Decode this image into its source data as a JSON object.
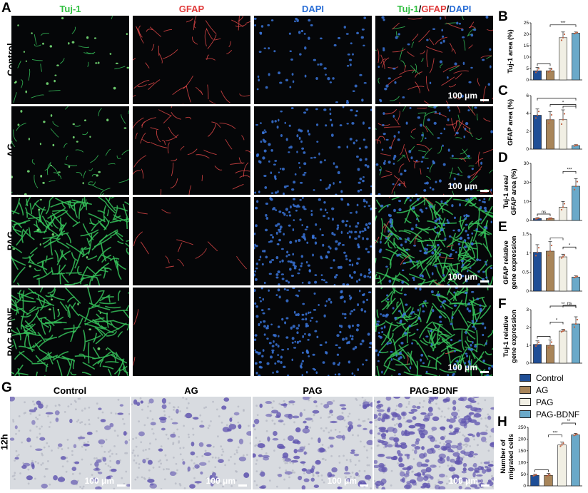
{
  "panel_letters": {
    "A": "A",
    "B": "B",
    "C": "C",
    "D": "D",
    "E": "E",
    "F": "F",
    "G": "G",
    "H": "H"
  },
  "panelA": {
    "channels": [
      {
        "label": "Tuj-1",
        "color": "#2fbf3f"
      },
      {
        "label": "GFAP",
        "color": "#e03a3a"
      },
      {
        "label": "DAPI",
        "color": "#2b6fd6"
      }
    ],
    "merge_label": {
      "a": "Tuj-1",
      "sep1": "/",
      "b": "GFAP",
      "sep2": "/",
      "c": "DAPI"
    },
    "rows": [
      "Control",
      "AG",
      "PAG",
      "PAG-BDNF"
    ],
    "scale_bar": "100 μm"
  },
  "panelG": {
    "columns": [
      "Control",
      "AG",
      "PAG",
      "PAG-BDNF"
    ],
    "row_label": "12h",
    "scale_bar": "100 μm"
  },
  "legend": {
    "items": [
      {
        "label": "Control",
        "color": "#1f4e96"
      },
      {
        "label": "AG",
        "color": "#a8855a"
      },
      {
        "label": "PAG",
        "color": "#f1efe4"
      },
      {
        "label": "PAG-BDNF",
        "color": "#6aa9c9"
      }
    ]
  },
  "chart_data": [
    {
      "id": "B",
      "type": "bar",
      "categories": [
        "Control",
        "AG",
        "PAG",
        "PAG-BDNF"
      ],
      "values": [
        4,
        4,
        18.5,
        20.5
      ],
      "errors": [
        1.5,
        1.2,
        2.5,
        0.5
      ],
      "ylabel_lines": [
        "Tuj-1 area (%)"
      ],
      "ylim": [
        0,
        25
      ],
      "yticks": [
        0,
        5,
        10,
        15,
        20,
        25
      ],
      "sig": [
        {
          "from": 0,
          "to": 1,
          "label": ""
        },
        {
          "from": 1,
          "to": 3,
          "label": "***"
        }
      ]
    },
    {
      "id": "C",
      "type": "bar",
      "categories": [
        "Control",
        "AG",
        "PAG",
        "PAG-BDNF"
      ],
      "values": [
        3.8,
        3.3,
        3.3,
        0.4
      ],
      "errors": [
        0.7,
        0.9,
        1.1,
        0.1
      ],
      "ylabel_lines": [
        "GFAP area (%)"
      ],
      "ylim": [
        0,
        6
      ],
      "yticks": [
        0,
        2,
        4,
        6
      ],
      "sig": [
        {
          "from": 2,
          "to": 3,
          "label": ""
        },
        {
          "from": 1,
          "to": 3,
          "label": "*"
        },
        {
          "from": 0,
          "to": 3,
          "label": ""
        }
      ]
    },
    {
      "id": "D",
      "type": "bar",
      "categories": [
        "Control",
        "AG",
        "PAG",
        "PAG-BDNF"
      ],
      "values": [
        1,
        1,
        7,
        18
      ],
      "errors": [
        0.5,
        0.4,
        3,
        4
      ],
      "ylabel_lines": [
        "Tuj-1 area/",
        "GFAP area (%)"
      ],
      "ylim": [
        0,
        30
      ],
      "yticks": [
        0,
        10,
        20,
        30
      ],
      "sig": [
        {
          "from": 0,
          "to": 1,
          "label": "ns"
        },
        {
          "from": 2,
          "to": 3,
          "label": "***"
        }
      ]
    },
    {
      "id": "E",
      "type": "bar",
      "categories": [
        "Control",
        "AG",
        "PAG",
        "PAG-BDNF"
      ],
      "values": [
        1.02,
        1.05,
        0.9,
        0.37
      ],
      "errors": [
        0.2,
        0.25,
        0.07,
        0.03
      ],
      "ylabel_lines": [
        "GFAP relative",
        "gene expression"
      ],
      "ylim": [
        0,
        1.5
      ],
      "yticks": [
        0,
        0.5,
        1.0,
        1.5
      ],
      "sig": [
        {
          "from": 1,
          "to": 2,
          "label": ""
        },
        {
          "from": 2,
          "to": 3,
          "label": "*"
        }
      ]
    },
    {
      "id": "F",
      "type": "bar",
      "categories": [
        "Control",
        "AG",
        "PAG",
        "PAG-BDNF"
      ],
      "values": [
        1.05,
        1.0,
        1.8,
        2.2
      ],
      "errors": [
        0.2,
        0.3,
        0.1,
        0.4
      ],
      "ylabel_lines": [
        "Tuj-1 relative",
        "gene expression"
      ],
      "ylim": [
        0,
        3
      ],
      "yticks": [
        0,
        1,
        2,
        3
      ],
      "sig": [
        {
          "from": 0,
          "to": 1,
          "label": ""
        },
        {
          "from": 1,
          "to": 2,
          "label": "*"
        },
        {
          "from": 1,
          "to": 3,
          "label": "**"
        },
        {
          "from": 2,
          "to": 3,
          "label": "ns"
        }
      ]
    },
    {
      "id": "H",
      "type": "bar",
      "categories": [
        "Control",
        "AG",
        "PAG",
        "PAG-BDNF"
      ],
      "values": [
        45,
        45,
        175,
        218
      ],
      "errors": [
        5,
        8,
        12,
        6
      ],
      "ylabel_lines": [
        "Number of",
        "migrated cells"
      ],
      "ylim": [
        0,
        250
      ],
      "yticks": [
        0,
        50,
        100,
        150,
        200,
        250
      ],
      "sig": [
        {
          "from": 0,
          "to": 1,
          "label": ""
        },
        {
          "from": 1,
          "to": 2,
          "label": "***"
        },
        {
          "from": 2,
          "to": 3,
          "label": "**"
        }
      ]
    }
  ]
}
